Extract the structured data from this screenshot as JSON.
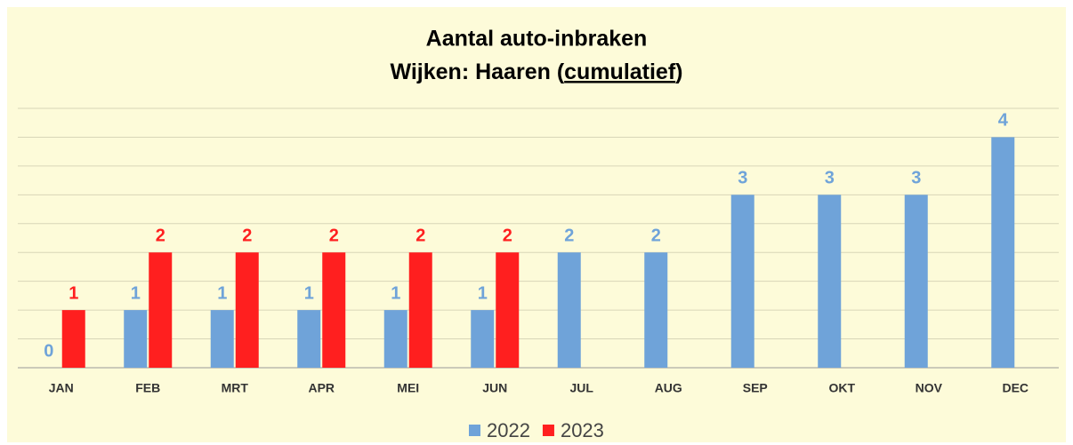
{
  "chart_data": {
    "type": "bar",
    "title": "Aantal auto-inbraken",
    "subtitle": [
      "Wijken: Haaren (",
      "cumulatief",
      ")"
    ],
    "categories": [
      "JAN",
      "FEB",
      "MRT",
      "APR",
      "MEI",
      "JUN",
      "JUL",
      "AUG",
      "SEP",
      "OKT",
      "NOV",
      "DEC"
    ],
    "series": [
      {
        "name": "2022",
        "color": "#6fa3d9",
        "values": [
          0,
          1,
          1,
          1,
          1,
          1,
          2,
          2,
          3,
          3,
          3,
          4
        ]
      },
      {
        "name": "2023",
        "color": "#ff1f1f",
        "values": [
          1,
          2,
          2,
          2,
          2,
          2,
          null,
          null,
          null,
          null,
          null,
          null
        ]
      }
    ],
    "ylim": [
      0,
      4.5
    ],
    "yticks": [
      0,
      0.5,
      1,
      1.5,
      2,
      2.5,
      3,
      3.5,
      4,
      4.5
    ],
    "grid": true,
    "legend": "bottom"
  }
}
